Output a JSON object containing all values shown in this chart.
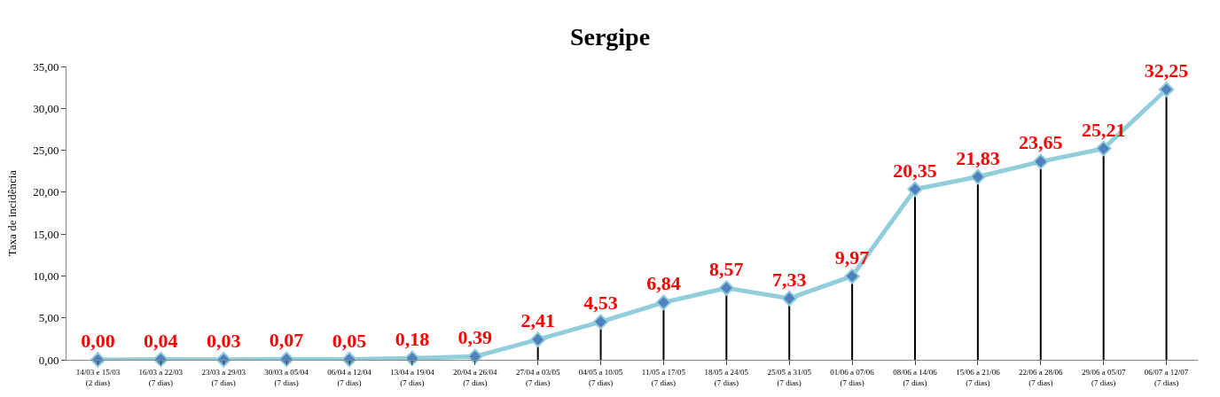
{
  "chart_data": {
    "type": "line",
    "title": "Sergipe",
    "ylabel": "Taxa de incidência",
    "categories": [
      "14/03 e 15/03\n(2 dias)",
      "16/03 a 22/03\n(7 dias)",
      "23/03 a 29/03\n(7 dias)",
      "30/03 a 05/04\n(7 dias)",
      "06/04 a 12/04\n(7 dias)",
      "13/04 a 19/04\n(7 dias)",
      "20/04 a 26/04\n(7 dias)",
      "27/04 a 03/05\n(7 dias)",
      "04/05 a 10/05\n(7 dias)",
      "11/05 a 17/05\n(7 dias)",
      "18/05 a 24/05\n(7 dias)",
      "25/05 a 31/05\n(7 dias)",
      "01/06 a 07/06\n(7 dias)",
      "08/06 a 14/06\n(7 dias)",
      "15/06 a 21/06\n(7 dias)",
      "22/06 a 28/06\n(7 dias)",
      "29/06 a 05/07\n(7 dias)",
      "06/07 a 12/07\n(7 dias)"
    ],
    "series": [
      {
        "color": "#92cddc",
        "values": [
          0.0,
          0.04,
          0.03,
          0.07,
          0.05,
          0.18,
          0.39,
          2.41,
          4.53,
          6.84,
          8.57,
          7.33,
          9.97,
          20.35,
          21.83,
          23.65,
          25.21,
          32.25
        ],
        "value_labels": [
          "0,00",
          "0,04",
          "0,03",
          "0,07",
          "0,05",
          "0,18",
          "0,39",
          "2,41",
          "4,53",
          "6,84",
          "8,57",
          "7,33",
          "9,97",
          "20,35",
          "21,83",
          "23,65",
          "25,21",
          "32,25"
        ]
      }
    ],
    "ylim": [
      0,
      35
    ],
    "yticks": [
      {
        "value": 0,
        "label": "0,00"
      },
      {
        "value": 5,
        "label": "5,00"
      },
      {
        "value": 10,
        "label": "10,00"
      },
      {
        "value": 15,
        "label": "15,00"
      },
      {
        "value": 20,
        "label": "20,00"
      },
      {
        "value": 25,
        "label": "25,00"
      },
      {
        "value": 30,
        "label": "30,00"
      },
      {
        "value": 35,
        "label": "35,00"
      }
    ],
    "marker": "diamond",
    "line_style": "solid"
  }
}
